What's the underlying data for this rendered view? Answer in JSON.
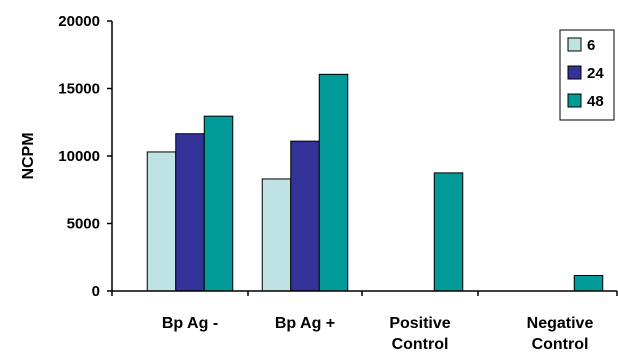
{
  "chart_data": {
    "type": "bar",
    "categories": [
      [
        "Bp Ag -"
      ],
      [
        "Bp Ag +"
      ],
      [
        "Positive",
        "Control"
      ],
      [
        "Negative",
        "Control"
      ]
    ],
    "series": [
      {
        "name": "6",
        "color": "#BFE3E5",
        "values": [
          10300,
          8300,
          0,
          0
        ]
      },
      {
        "name": "24",
        "color": "#33339A",
        "values": [
          11650,
          11100,
          0,
          0
        ]
      },
      {
        "name": "48",
        "color": "#009A99",
        "values": [
          12950,
          16050,
          8750,
          1150
        ]
      }
    ],
    "ylabel": "NCPM",
    "ylim": [
      0,
      20000
    ],
    "yticks": [
      0,
      5000,
      10000,
      15000,
      20000
    ],
    "yticks_labels": [
      "0",
      "5000",
      "10000",
      "15000",
      "20000"
    ],
    "legend_position": "top-right",
    "grid": false
  }
}
